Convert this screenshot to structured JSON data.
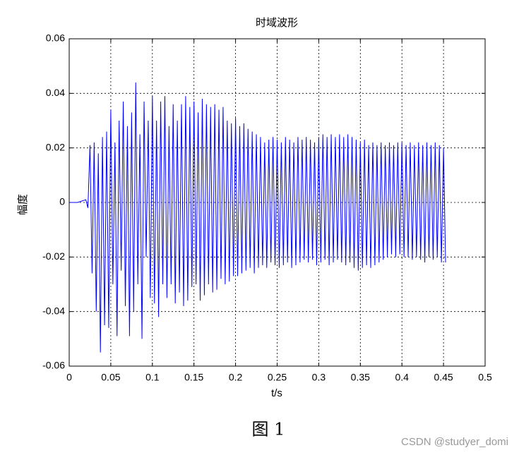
{
  "chart_data": {
    "type": "line",
    "title": "时域波形",
    "xlabel": "t/s",
    "ylabel": "幅度",
    "x": [
      0,
      0.01,
      0.02,
      0.0225,
      0.025,
      0.0275,
      0.03,
      0.0325,
      0.035,
      0.0375,
      0.04,
      0.0425,
      0.045,
      0.0475,
      0.05,
      0.0525,
      0.055,
      0.0575,
      0.06,
      0.0625,
      0.065,
      0.0675,
      0.07,
      0.0725,
      0.075,
      0.0775,
      0.08,
      0.0825,
      0.085,
      0.0875,
      0.09,
      0.0925,
      0.095,
      0.0975,
      0.1,
      0.1025,
      0.105,
      0.1075,
      0.11,
      0.1125,
      0.115,
      0.1175,
      0.12,
      0.1225,
      0.125,
      0.1275,
      0.13,
      0.1325,
      0.135,
      0.1375,
      0.14,
      0.1425,
      0.145,
      0.1475,
      0.15,
      0.1525,
      0.155,
      0.1575,
      0.16,
      0.1625,
      0.165,
      0.1675,
      0.17,
      0.1725,
      0.175,
      0.1775,
      0.18,
      0.1825,
      0.185,
      0.1875,
      0.19,
      0.1925,
      0.195,
      0.1975,
      0.2,
      0.2025,
      0.205,
      0.2075,
      0.21,
      0.2125,
      0.215,
      0.2175,
      0.22,
      0.2225,
      0.225,
      0.2275,
      0.23,
      0.2325,
      0.235,
      0.2375,
      0.24,
      0.2425,
      0.245,
      0.2475,
      0.25,
      0.2525,
      0.255,
      0.2575,
      0.26,
      0.2625,
      0.265,
      0.2675,
      0.27,
      0.2725,
      0.275,
      0.2775,
      0.28,
      0.2825,
      0.285,
      0.2875,
      0.29,
      0.2925,
      0.295,
      0.2975,
      0.3,
      0.3025,
      0.305,
      0.3075,
      0.31,
      0.3125,
      0.315,
      0.3175,
      0.32,
      0.3225,
      0.325,
      0.3275,
      0.33,
      0.3325,
      0.335,
      0.3375,
      0.34,
      0.3425,
      0.345,
      0.3475,
      0.35,
      0.3525,
      0.355,
      0.3575,
      0.36,
      0.3625,
      0.365,
      0.3675,
      0.37,
      0.3725,
      0.375,
      0.3775,
      0.38,
      0.3825,
      0.385,
      0.3875,
      0.39,
      0.3925,
      0.395,
      0.3975,
      0.4,
      0.4025,
      0.405,
      0.4075,
      0.41,
      0.4125,
      0.415,
      0.4175,
      0.42,
      0.4225,
      0.425,
      0.4275,
      0.43,
      0.4325,
      0.435,
      0.4375,
      0.44,
      0.4425,
      0.445,
      0.4475,
      0.45,
      0.4525
    ],
    "series": [
      {
        "color": "#0000ff",
        "values": [
          0,
          0,
          0.001,
          -0.002,
          0.021,
          -0.026,
          0.022,
          -0.04,
          0.018,
          -0.055,
          0.024,
          -0.045,
          0.026,
          -0.046,
          0.034,
          -0.03,
          0.022,
          -0.049,
          0.03,
          -0.025,
          0.037,
          -0.038,
          0.028,
          -0.049,
          0.033,
          -0.04,
          0.044,
          -0.03,
          0.025,
          -0.05,
          0.037,
          -0.02,
          0.03,
          -0.035,
          0.039,
          -0.037,
          0.03,
          -0.042,
          0.037,
          -0.03,
          0.039,
          -0.035,
          0.028,
          -0.03,
          0.036,
          -0.037,
          0.03,
          -0.033,
          0.036,
          -0.038,
          0.039,
          -0.036,
          0.035,
          -0.031,
          0.037,
          -0.03,
          0.033,
          -0.036,
          0.038,
          -0.034,
          0.036,
          -0.03,
          0.035,
          -0.033,
          0.036,
          -0.032,
          0.034,
          -0.028,
          0.035,
          -0.03,
          0.03,
          -0.029,
          0.029,
          -0.027,
          0.031,
          -0.027,
          0.028,
          -0.026,
          0.029,
          -0.025,
          0.027,
          -0.024,
          0.026,
          -0.026,
          0.025,
          -0.024,
          0.024,
          -0.023,
          0.022,
          -0.024,
          0.023,
          -0.022,
          0.024,
          -0.023,
          0.023,
          -0.024,
          0.022,
          -0.023,
          0.024,
          -0.022,
          0.023,
          -0.024,
          0.022,
          -0.023,
          0.024,
          -0.022,
          0.023,
          -0.021,
          0.024,
          -0.022,
          0.023,
          -0.021,
          0.022,
          -0.023,
          0.024,
          -0.022,
          0.025,
          -0.021,
          0.024,
          -0.023,
          0.025,
          -0.022,
          0.024,
          -0.021,
          0.025,
          -0.022,
          0.024,
          -0.023,
          0.025,
          -0.022,
          0.024,
          -0.024,
          0.023,
          -0.025,
          0.022,
          -0.024,
          0.023,
          -0.023,
          0.021,
          -0.024,
          0.022,
          -0.023,
          0.021,
          -0.022,
          0.022,
          -0.021,
          0.021,
          -0.02,
          0.022,
          -0.019,
          0.021,
          -0.02,
          0.022,
          -0.019,
          0.022,
          -0.02,
          0.021,
          -0.02,
          0.022,
          -0.021,
          0.021,
          -0.02,
          0.022,
          -0.021,
          0.021,
          -0.022,
          0.022,
          -0.02,
          0.021,
          -0.021,
          0.022,
          -0.02,
          0.021,
          -0.022,
          0.02,
          -0.022
        ]
      }
    ],
    "xlim": [
      0,
      0.5
    ],
    "ylim": [
      -0.06,
      0.06
    ],
    "xticks": [
      0,
      0.05,
      0.1,
      0.15,
      0.2,
      0.25,
      0.3,
      0.35,
      0.4,
      0.45,
      0.5
    ],
    "yticks": [
      -0.06,
      -0.04,
      -0.02,
      0,
      0.02,
      0.04,
      0.06
    ],
    "grid": true
  },
  "caption": "图 1",
  "watermark": "CSDN @studyer_domi"
}
